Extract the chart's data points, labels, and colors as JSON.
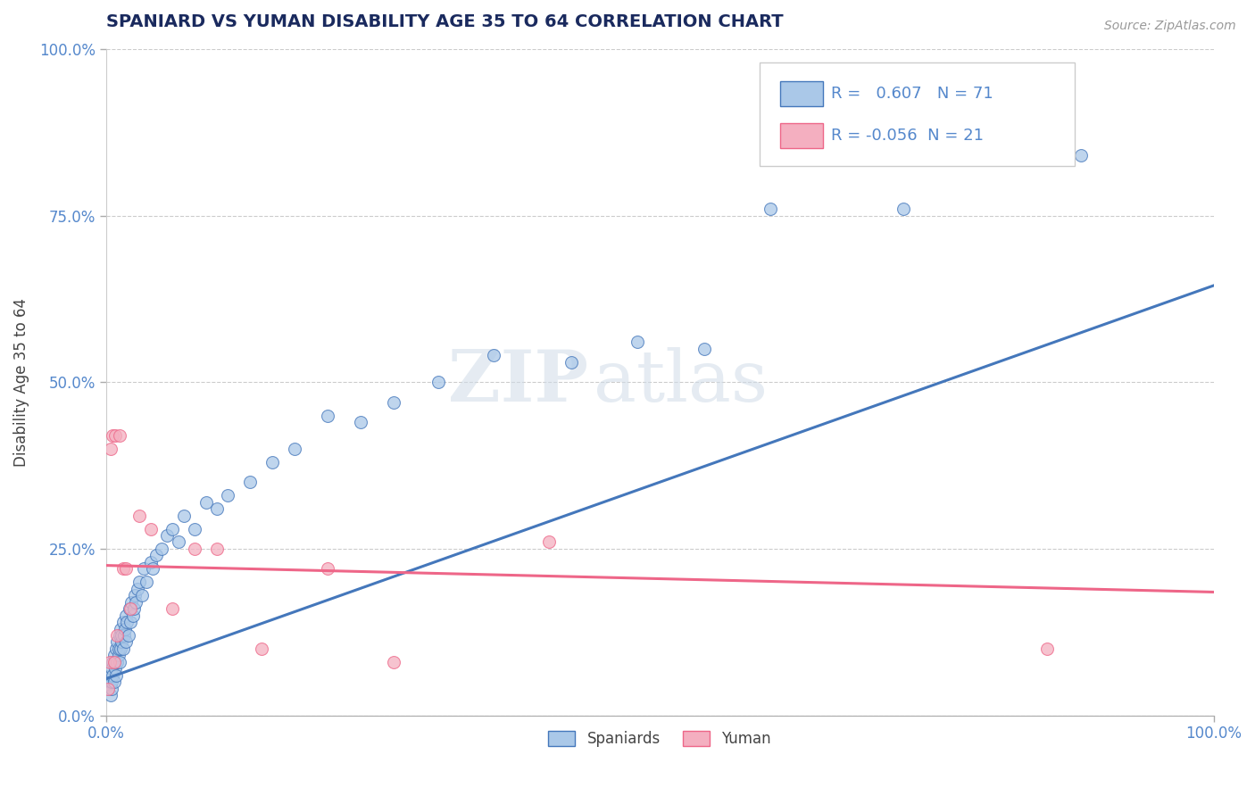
{
  "title": "SPANIARD VS YUMAN DISABILITY AGE 35 TO 64 CORRELATION CHART",
  "source_text": "Source: ZipAtlas.com",
  "ylabel": "Disability Age 35 to 64",
  "xlim": [
    0.0,
    1.0
  ],
  "ylim": [
    0.0,
    1.0
  ],
  "ytick_labels": [
    "0.0%",
    "25.0%",
    "50.0%",
    "75.0%",
    "100.0%"
  ],
  "ytick_positions": [
    0.0,
    0.25,
    0.5,
    0.75,
    1.0
  ],
  "spaniards_color": "#aac8e8",
  "yuman_color": "#f4afc0",
  "spaniards_R": 0.607,
  "spaniards_N": 71,
  "yuman_R": -0.056,
  "yuman_N": 21,
  "legend_label_spaniards": "Spaniards",
  "legend_label_yuman": "Yuman",
  "spaniards_line_color": "#4477bb",
  "yuman_line_color": "#ee6688",
  "watermark": "ZIPatlas",
  "background_color": "#ffffff",
  "grid_color": "#cccccc",
  "title_color": "#1a2a5e",
  "axis_label_color": "#5588cc",
  "spaniards_x": [
    0.002,
    0.003,
    0.004,
    0.004,
    0.005,
    0.005,
    0.005,
    0.006,
    0.006,
    0.007,
    0.007,
    0.008,
    0.008,
    0.009,
    0.009,
    0.01,
    0.01,
    0.011,
    0.011,
    0.012,
    0.012,
    0.013,
    0.013,
    0.014,
    0.014,
    0.015,
    0.015,
    0.016,
    0.017,
    0.018,
    0.018,
    0.019,
    0.02,
    0.021,
    0.022,
    0.023,
    0.024,
    0.025,
    0.026,
    0.027,
    0.028,
    0.03,
    0.032,
    0.034,
    0.036,
    0.04,
    0.042,
    0.045,
    0.05,
    0.055,
    0.06,
    0.065,
    0.07,
    0.08,
    0.09,
    0.1,
    0.11,
    0.13,
    0.15,
    0.17,
    0.2,
    0.23,
    0.26,
    0.3,
    0.35,
    0.42,
    0.48,
    0.54,
    0.6,
    0.72,
    0.88
  ],
  "spaniards_y": [
    0.04,
    0.05,
    0.03,
    0.06,
    0.04,
    0.07,
    0.05,
    0.06,
    0.08,
    0.05,
    0.09,
    0.07,
    0.08,
    0.06,
    0.1,
    0.08,
    0.11,
    0.09,
    0.1,
    0.08,
    0.12,
    0.1,
    0.13,
    0.11,
    0.12,
    0.1,
    0.14,
    0.12,
    0.13,
    0.11,
    0.15,
    0.14,
    0.12,
    0.16,
    0.14,
    0.17,
    0.15,
    0.16,
    0.18,
    0.17,
    0.19,
    0.2,
    0.18,
    0.22,
    0.2,
    0.23,
    0.22,
    0.24,
    0.25,
    0.27,
    0.28,
    0.26,
    0.3,
    0.28,
    0.32,
    0.31,
    0.33,
    0.35,
    0.38,
    0.4,
    0.45,
    0.44,
    0.47,
    0.5,
    0.54,
    0.53,
    0.56,
    0.55,
    0.76,
    0.76,
    0.84
  ],
  "spaniards_line_x0": 0.0,
  "spaniards_line_y0": 0.055,
  "spaniards_line_x1": 1.0,
  "spaniards_line_y1": 0.645,
  "yuman_line_x0": 0.0,
  "yuman_line_y0": 0.225,
  "yuman_line_x1": 1.0,
  "yuman_line_y1": 0.185,
  "yuman_x": [
    0.002,
    0.003,
    0.004,
    0.006,
    0.007,
    0.008,
    0.01,
    0.012,
    0.015,
    0.018,
    0.022,
    0.03,
    0.04,
    0.06,
    0.08,
    0.1,
    0.14,
    0.2,
    0.26,
    0.4,
    0.85
  ],
  "yuman_y": [
    0.04,
    0.08,
    0.4,
    0.42,
    0.08,
    0.42,
    0.12,
    0.42,
    0.22,
    0.22,
    0.16,
    0.3,
    0.28,
    0.16,
    0.25,
    0.25,
    0.1,
    0.22,
    0.08,
    0.26,
    0.1
  ]
}
